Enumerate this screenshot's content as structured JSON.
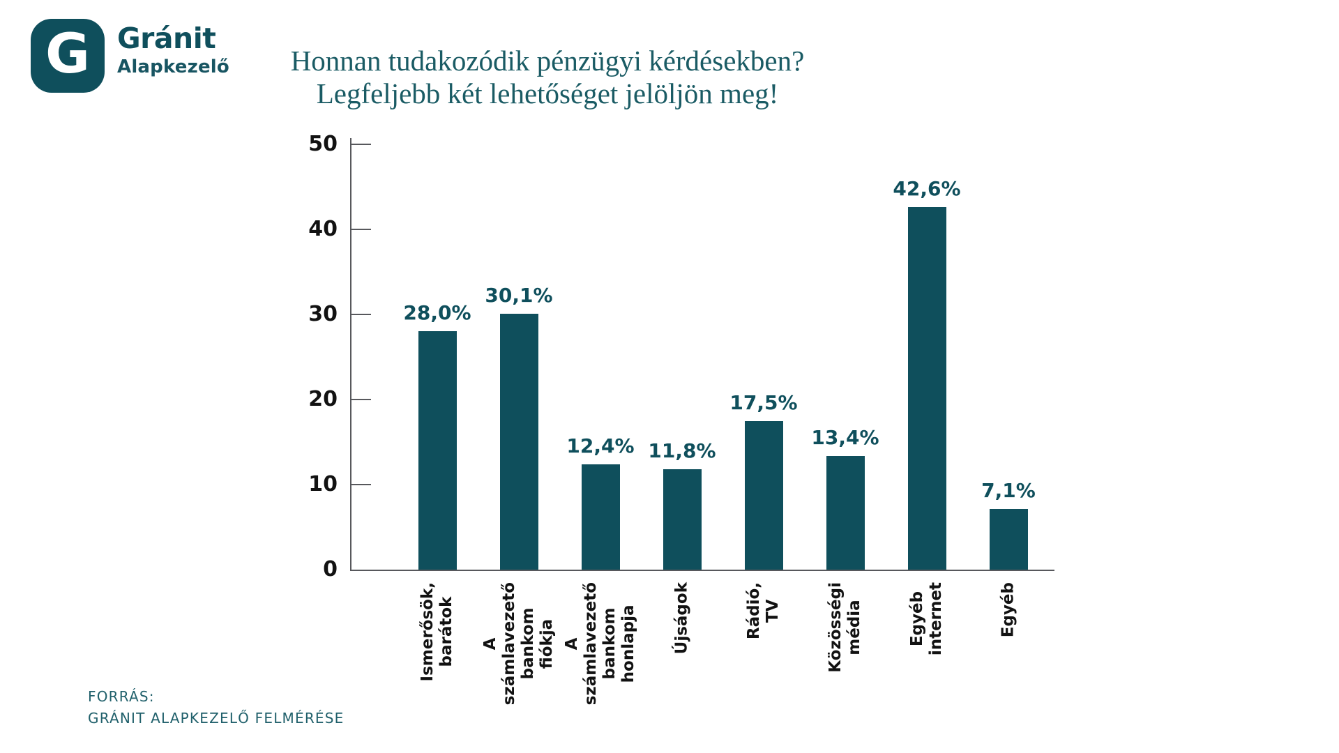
{
  "brand": {
    "logo_letter": "G",
    "name": "Gránit",
    "subtitle": "Alapkezelő"
  },
  "title": {
    "line1": "Honnan tudakozódik pénzügyi kérdésekben?",
    "line2": "Legfeljebb két lehetőséget jelöljön meg!"
  },
  "footer": {
    "line1": "FORRÁS:",
    "line2": "GRÁNIT ALAPKEZELŐ FELMÉRÉSE"
  },
  "colors": {
    "teal": "#0F4F5C",
    "title_teal": "#1A5B64",
    "footer_teal": "#20606B",
    "axis_gray": "#57585C",
    "tick_label_ink": "#121212"
  },
  "chart_data": {
    "type": "bar",
    "categories": [
      "Ismerősök,\nbarátok",
      "A számlavezető\nbankom fiókja",
      "A számlavezető\nbankom honlapja",
      "Újságok",
      "Rádió, TV",
      "Közösségi\nmédia",
      "Egyéb\ninternet",
      "Egyéb"
    ],
    "values": [
      28.0,
      30.1,
      12.4,
      11.8,
      17.5,
      13.4,
      42.6,
      7.1
    ],
    "value_labels": [
      "28,0%",
      "30,1%",
      "12,4%",
      "11,8%",
      "17,5%",
      "13,4%",
      "42,6%",
      "7,1%"
    ],
    "title": "Honnan tudakozódik pénzügyi kérdésekben? Legfeljebb két lehetőséget jelöljön meg!",
    "xlabel": "",
    "ylabel": "",
    "ylim": [
      0,
      50
    ],
    "yticks": [
      0,
      10,
      20,
      30,
      40,
      50
    ],
    "grid": false,
    "legend": false,
    "bar_color": "#0F4F5C"
  }
}
